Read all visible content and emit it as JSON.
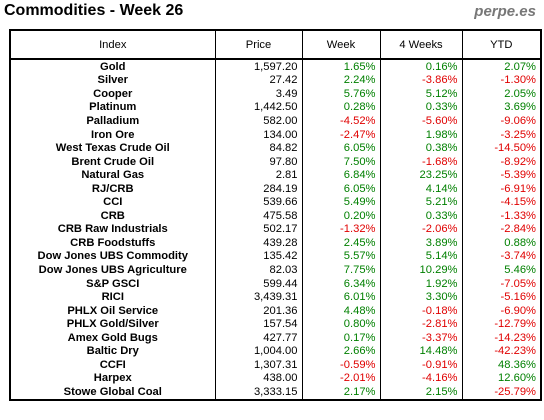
{
  "title": "Commodities - Week 26",
  "brand": "perpe.es",
  "columns": [
    "Index",
    "Price",
    "Week",
    "4 Weeks",
    "YTD"
  ],
  "rows": [
    {
      "name": "Gold",
      "price": "1,597.20",
      "week": "1.65%",
      "four_weeks": "0.16%",
      "ytd": "2.07%"
    },
    {
      "name": "Silver",
      "price": "27.42",
      "week": "2.24%",
      "four_weeks": "-3.86%",
      "ytd": "-1.30%"
    },
    {
      "name": "Cooper",
      "price": "3.49",
      "week": "5.76%",
      "four_weeks": "5.12%",
      "ytd": "2.05%"
    },
    {
      "name": "Platinum",
      "price": "1,442.50",
      "week": "0.28%",
      "four_weeks": "0.33%",
      "ytd": "3.69%"
    },
    {
      "name": "Palladium",
      "price": "582.00",
      "week": "-4.52%",
      "four_weeks": "-5.60%",
      "ytd": "-9.06%"
    },
    {
      "name": "Iron Ore",
      "price": "134.00",
      "week": "-2.47%",
      "four_weeks": "1.98%",
      "ytd": "-3.25%"
    },
    {
      "name": "West Texas Crude Oil",
      "price": "84.82",
      "week": "6.05%",
      "four_weeks": "0.38%",
      "ytd": "-14.50%"
    },
    {
      "name": "Brent Crude Oil",
      "price": "97.80",
      "week": "7.50%",
      "four_weeks": "-1.68%",
      "ytd": "-8.92%"
    },
    {
      "name": "Natural Gas",
      "price": "2.81",
      "week": "6.84%",
      "four_weeks": "23.25%",
      "ytd": "-5.39%"
    },
    {
      "name": "RJ/CRB",
      "price": "284.19",
      "week": "6.05%",
      "four_weeks": "4.14%",
      "ytd": "-6.91%"
    },
    {
      "name": "CCI",
      "price": "539.66",
      "week": "5.49%",
      "four_weeks": "5.21%",
      "ytd": "-4.15%"
    },
    {
      "name": "CRB",
      "price": "475.58",
      "week": "0.20%",
      "four_weeks": "0.33%",
      "ytd": "-1.33%"
    },
    {
      "name": "CRB Raw Industrials",
      "price": "502.17",
      "week": "-1.32%",
      "four_weeks": "-2.06%",
      "ytd": "-2.84%"
    },
    {
      "name": "CRB Foodstuffs",
      "price": "439.28",
      "week": "2.45%",
      "four_weeks": "3.89%",
      "ytd": "0.88%"
    },
    {
      "name": "Dow Jones UBS Commodity",
      "price": "135.42",
      "week": "5.57%",
      "four_weeks": "5.14%",
      "ytd": "-3.74%"
    },
    {
      "name": "Dow Jones UBS Agriculture",
      "price": "82.03",
      "week": "7.75%",
      "four_weeks": "10.29%",
      "ytd": "5.46%"
    },
    {
      "name": "S&P GSCI",
      "price": "599.44",
      "week": "6.34%",
      "four_weeks": "1.92%",
      "ytd": "-7.05%"
    },
    {
      "name": "RICI",
      "price": "3,439.31",
      "week": "6.01%",
      "four_weeks": "3.30%",
      "ytd": "-5.16%"
    },
    {
      "name": "PHLX Oil Service",
      "price": "201.36",
      "week": "4.48%",
      "four_weeks": "-0.18%",
      "ytd": "-6.90%"
    },
    {
      "name": "PHLX Gold/Silver",
      "price": "157.54",
      "week": "0.80%",
      "four_weeks": "-2.81%",
      "ytd": "-12.79%"
    },
    {
      "name": "Amex Gold Bugs",
      "price": "427.77",
      "week": "0.17%",
      "four_weeks": "-3.37%",
      "ytd": "-14.23%"
    },
    {
      "name": "Baltic Dry",
      "price": "1,004.00",
      "week": "2.66%",
      "four_weeks": "14.48%",
      "ytd": "-42.23%"
    },
    {
      "name": "CCFI",
      "price": "1,307.31",
      "week": "-0.59%",
      "four_weeks": "-0.91%",
      "ytd": "48.36%"
    },
    {
      "name": "Harpex",
      "price": "438.00",
      "week": "-2.01%",
      "four_weeks": "-4.16%",
      "ytd": "12.60%"
    },
    {
      "name": "Stowe Global Coal",
      "price": "3,333.15",
      "week": "2.17%",
      "four_weeks": "2.15%",
      "ytd": "-25.79%"
    }
  ],
  "colors": {
    "positive": "#008000",
    "negative": "#e00000",
    "brand": "#777777"
  }
}
